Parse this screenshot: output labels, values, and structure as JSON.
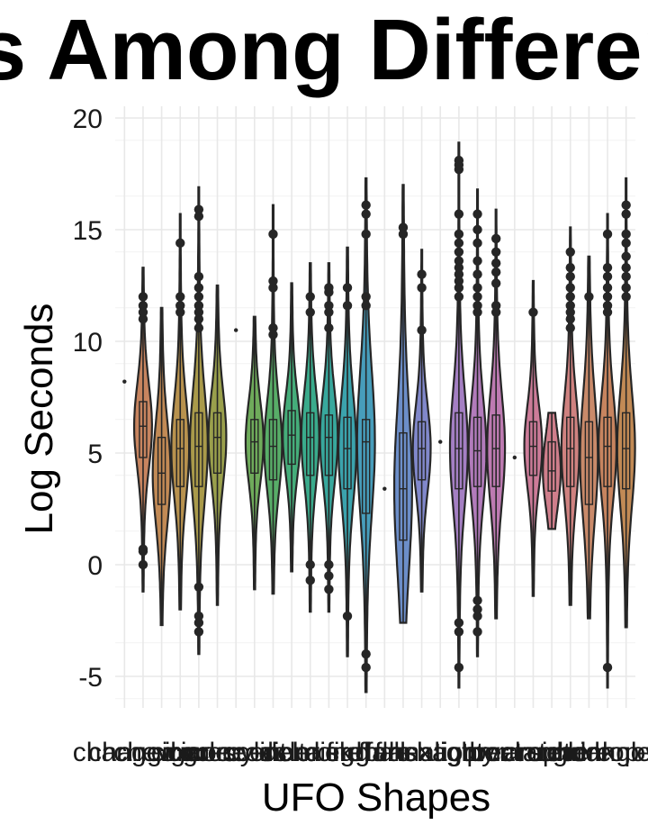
{
  "chart_data": {
    "type": "violin",
    "title": "Log Seconds Among Different UFO Shapes",
    "xlabel": "UFO Shapes",
    "ylabel": "Log Seconds",
    "ylim": [
      -6.6,
      20
    ],
    "yticks": [
      -5,
      0,
      5,
      10,
      15,
      20
    ],
    "grid": true,
    "legend": "none",
    "colors": {
      "outline": "#262626",
      "grid": "#e8e8e8",
      "palette": [
        "#c98a6a",
        "#c7845f",
        "#c28a55",
        "#b8924e",
        "#a99a4a",
        "#9aa04c",
        "#86a652",
        "#6fab5b",
        "#58ad68",
        "#45ad7a",
        "#3aab8c",
        "#38a89d",
        "#3ba3ad",
        "#479dbb",
        "#5896c4",
        "#6c8ec9",
        "#8188cb",
        "#9383c9",
        "#a47fc3",
        "#b27bbb",
        "#bd7ab1",
        "#c67aa5",
        "#cc7b98",
        "#cf7e8b",
        "#cf8280"
      ]
    },
    "categories": [
      "changed",
      "changing",
      "chevron",
      "cigar",
      "circle",
      "cone",
      "crescent",
      "cross",
      "cylinder",
      "delta",
      "diamond",
      "disk",
      "egg",
      "fireball",
      "flare",
      "flash",
      "formation",
      "hexagon",
      "light",
      "other",
      "oval",
      "pyramid",
      "rectangle",
      "round",
      "sphere",
      "teardrop",
      "triangle",
      "unknown"
    ],
    "series": [
      {
        "name": "changed",
        "median": 8.2,
        "q1": 8.2,
        "q3": 8.2,
        "min": 8.2,
        "max": 8.2,
        "outliers": [],
        "single": true
      },
      {
        "name": "changing",
        "median": 6.2,
        "q1": 4.8,
        "q3": 7.3,
        "min": -1.2,
        "max": 13.3,
        "outliers": [
          12,
          11.6,
          11.3,
          11,
          0.7,
          0.6,
          0
        ]
      },
      {
        "name": "chevron",
        "median": 4.1,
        "q1": 2.7,
        "q3": 5.7,
        "min": -2.7,
        "max": 11.5,
        "outliers": []
      },
      {
        "name": "cigar",
        "median": 5.2,
        "q1": 3.5,
        "q3": 6.5,
        "min": -2,
        "max": 15.7,
        "outliers": [
          14.4,
          12,
          11.6,
          11.3
        ]
      },
      {
        "name": "circle",
        "median": 5.3,
        "q1": 3.5,
        "q3": 6.8,
        "min": -4,
        "max": 16.9,
        "outliers": [
          15.9,
          15.6,
          12.9,
          12.4,
          12,
          11.6,
          11.3,
          11,
          10.6,
          -1,
          -2.3,
          -2.6,
          -3
        ]
      },
      {
        "name": "cone",
        "median": 5.7,
        "q1": 4.1,
        "q3": 6.8,
        "min": -1.8,
        "max": 12.5,
        "outliers": []
      },
      {
        "name": "crescent",
        "median": 10.5,
        "q1": 10.5,
        "q3": 10.5,
        "min": 10.5,
        "max": 10.5,
        "outliers": [],
        "single": true
      },
      {
        "name": "cross",
        "median": 5.5,
        "q1": 4.1,
        "q3": 6.5,
        "min": -1.1,
        "max": 11.1,
        "outliers": []
      },
      {
        "name": "cylinder",
        "median": 5.3,
        "q1": 3.8,
        "q3": 6.5,
        "min": -1.3,
        "max": 16.1,
        "outliers": [
          14.8,
          12.7,
          12.4,
          10.6,
          10.3
        ]
      },
      {
        "name": "delta",
        "median": 5.8,
        "q1": 4.5,
        "q3": 6.9,
        "min": -0.3,
        "max": 12.6,
        "outliers": []
      },
      {
        "name": "diamond",
        "median": 5.7,
        "q1": 4,
        "q3": 6.8,
        "min": -2.1,
        "max": 13.5,
        "outliers": [
          12,
          11.3,
          0,
          -0.7
        ]
      },
      {
        "name": "disk",
        "median": 5.7,
        "q1": 4,
        "q3": 6.7,
        "min": -2.1,
        "max": 13.5,
        "outliers": [
          12.4,
          12.2,
          11.6,
          11.3,
          10.6,
          0,
          -0.5,
          -1.1
        ]
      },
      {
        "name": "egg",
        "median": 5.2,
        "q1": 3.4,
        "q3": 6.6,
        "min": -4.1,
        "max": 14.2,
        "outliers": [
          12.4,
          11.6,
          -2.3
        ]
      },
      {
        "name": "fireball",
        "median": 5.5,
        "q1": 2.3,
        "q3": 6.5,
        "min": -5.7,
        "max": 17.3,
        "outliers": [
          16.1,
          15.7,
          14.8,
          12,
          11.6,
          -4,
          -4.6
        ]
      },
      {
        "name": "flare",
        "median": 3.4,
        "q1": 3.4,
        "q3": 3.4,
        "min": 3.4,
        "max": 3.4,
        "outliers": [],
        "single": true
      },
      {
        "name": "flash",
        "median": 3.4,
        "q1": 1.1,
        "q3": 5.9,
        "min": -2.6,
        "max": 17,
        "outliers": [
          15.1,
          14.8
        ]
      },
      {
        "name": "formation",
        "median": 5.2,
        "q1": 3.8,
        "q3": 6.4,
        "min": -1.2,
        "max": 14.1,
        "outliers": [
          13,
          12.4,
          10.5
        ]
      },
      {
        "name": "hexagon",
        "median": 5.5,
        "q1": 5.5,
        "q3": 5.5,
        "min": 5.5,
        "max": 5.5,
        "outliers": [],
        "single": true
      },
      {
        "name": "light",
        "median": 5.2,
        "q1": 3.4,
        "q3": 6.8,
        "min": -5.5,
        "max": 18.9,
        "outliers": [
          18.1,
          17.9,
          17.7,
          15.7,
          14.8,
          14.4,
          14,
          13.6,
          13.3,
          13,
          12.7,
          12.4,
          12,
          -2.6,
          -3,
          -4.6
        ]
      },
      {
        "name": "other",
        "median": 5.1,
        "q1": 3.5,
        "q3": 6.6,
        "min": -4.1,
        "max": 16.8,
        "outliers": [
          15.7,
          15,
          14.4,
          13.6,
          13,
          12.4,
          12,
          11.6,
          11.3,
          -1.6,
          -2,
          -2.3,
          -3
        ]
      },
      {
        "name": "oval",
        "median": 5.2,
        "q1": 3.5,
        "q3": 6.7,
        "min": -2.4,
        "max": 15.9,
        "outliers": [
          14.6,
          14,
          13.5,
          13.1,
          12.6,
          11.6,
          11.3
        ]
      },
      {
        "name": "pyramid",
        "median": 4.8,
        "q1": 4.8,
        "q3": 4.8,
        "min": 4.8,
        "max": 4.8,
        "outliers": [],
        "single": true
      },
      {
        "name": "rectangle",
        "median": 5.3,
        "q1": 4,
        "q3": 6.4,
        "min": -1.4,
        "max": 12.7,
        "outliers": [
          11.3
        ]
      },
      {
        "name": "round",
        "median": 4.2,
        "q1": 3.3,
        "q3": 5.5,
        "min": 1.6,
        "max": 6.8,
        "outliers": []
      },
      {
        "name": "sphere",
        "median": 5.2,
        "q1": 3.5,
        "q3": 6.6,
        "min": -1.8,
        "max": 15.1,
        "outliers": [
          14,
          13.3,
          12.9,
          12.4,
          12,
          11.6,
          11.3,
          11,
          10.6
        ]
      },
      {
        "name": "teardrop",
        "median": 4.8,
        "q1": 2.7,
        "q3": 6.4,
        "min": -2.4,
        "max": 13.8,
        "outliers": [
          12
        ]
      },
      {
        "name": "triangle",
        "median": 5.3,
        "q1": 3.5,
        "q3": 6.6,
        "min": -5.5,
        "max": 15.7,
        "outliers": [
          14.8,
          13.3,
          12.9,
          12.4,
          12,
          11.6,
          11.3,
          -4.6
        ]
      },
      {
        "name": "unknown",
        "median": 5.2,
        "q1": 3.4,
        "q3": 6.8,
        "min": -2.8,
        "max": 17.3,
        "outliers": [
          16.1,
          15.7,
          14.8,
          14.4,
          13.8,
          13.3,
          12.9,
          12.4,
          12
        ]
      }
    ]
  }
}
